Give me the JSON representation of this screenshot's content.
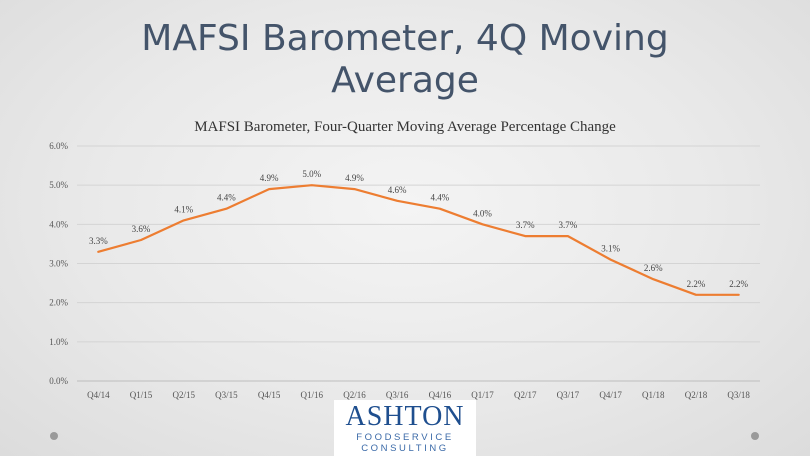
{
  "slide": {
    "title_line1": "MAFSI Barometer, 4Q Moving",
    "title_line2": "Average"
  },
  "logo": {
    "name": "ASHTON",
    "sub1": "FOODSERVICE",
    "sub2": "CONSULTING"
  },
  "chart_data": {
    "type": "line",
    "title": "MAFSI Barometer, Four-Quarter Moving Average Percentage Change",
    "xlabel": "",
    "ylabel": "",
    "categories": [
      "Q4/14",
      "Q1/15",
      "Q2/15",
      "Q3/15",
      "Q4/15",
      "Q1/16",
      "Q2/16",
      "Q3/16",
      "Q4/16",
      "Q1/17",
      "Q2/17",
      "Q3/17",
      "Q4/17",
      "Q1/18",
      "Q2/18",
      "Q3/18"
    ],
    "values": [
      3.3,
      3.6,
      4.1,
      4.4,
      4.9,
      5.0,
      4.9,
      4.6,
      4.4,
      4.0,
      3.7,
      3.7,
      3.1,
      2.6,
      2.2,
      2.2
    ],
    "data_labels": [
      "3.3%",
      "3.6%",
      "4.1%",
      "4.4%",
      "4.9%",
      "5.0%",
      "4.9%",
      "4.6%",
      "4.4%",
      "4.0%",
      "3.7%",
      "3.7%",
      "3.1%",
      "2.6%",
      "2.2%",
      "2.2%"
    ],
    "yticks": [
      "0.0%",
      "1.0%",
      "2.0%",
      "3.0%",
      "4.0%",
      "5.0%",
      "6.0%"
    ],
    "ylim": [
      0,
      6
    ],
    "grid": true,
    "legend": "none",
    "line_color": "#ed7d31",
    "grid_color": "#d4d4d4"
  }
}
